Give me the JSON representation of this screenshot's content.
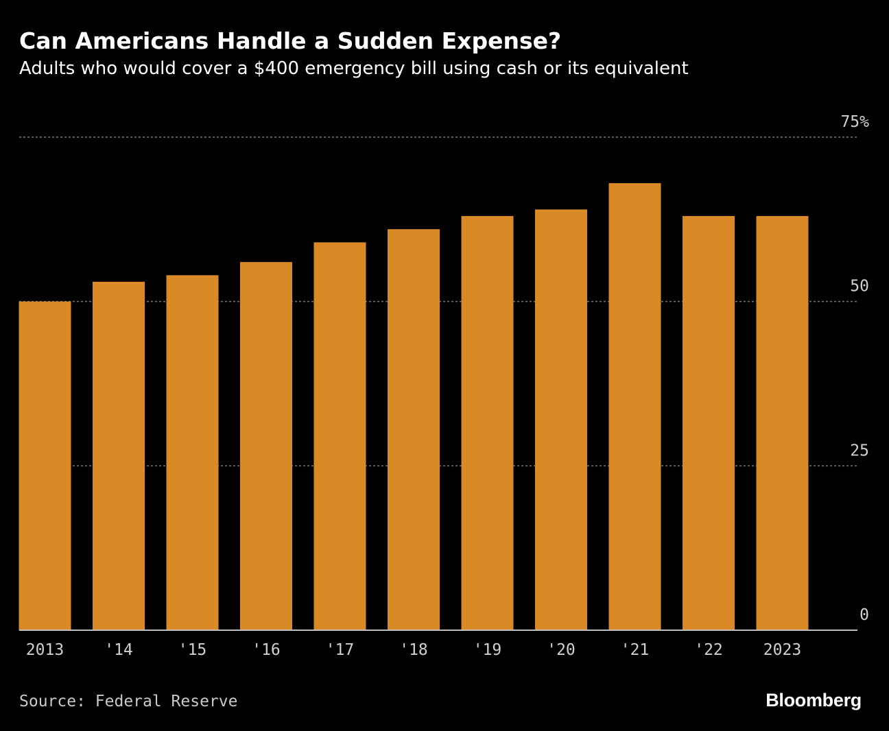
{
  "header": {
    "title": "Can Americans Handle a Sudden Expense?",
    "subtitle": "Adults who would cover a $400 emergency bill using cash or its equivalent"
  },
  "footer": {
    "source": "Source: Federal Reserve",
    "brand": "Bloomberg"
  },
  "colors": {
    "background": "#000000",
    "bar": "#d98a26",
    "grid": "#7a7a7a",
    "axis": "#bfbfbf",
    "tick_text": "#d0d0d0"
  },
  "chart_data": {
    "type": "bar",
    "title": "Can Americans Handle a Sudden Expense?",
    "subtitle": "Adults who would cover a $400 emergency bill using cash or its equivalent",
    "categories": [
      "2013",
      "'14",
      "'15",
      "'16",
      "'17",
      "'18",
      "'19",
      "'20",
      "'21",
      "'22",
      "2023"
    ],
    "values": [
      50,
      53,
      54,
      56,
      59,
      61,
      63,
      64,
      68,
      63,
      63
    ],
    "ylim": [
      0,
      75
    ],
    "yticks": [
      0,
      25,
      50,
      75
    ],
    "ytick_labels": [
      "0",
      "25",
      "50",
      "75%"
    ],
    "xlabel": "",
    "ylabel": "",
    "grid": true,
    "y_axis_position": "right"
  }
}
